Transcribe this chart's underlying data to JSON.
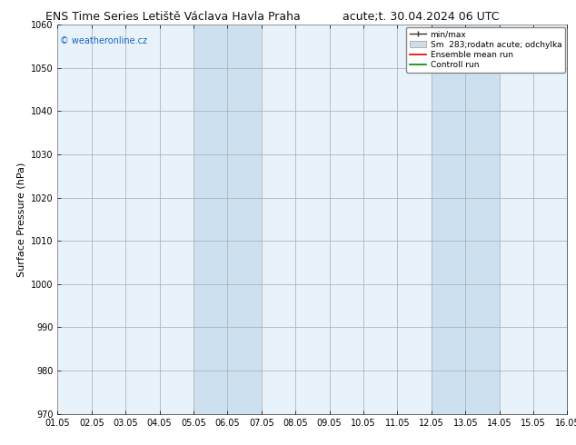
{
  "title_left": "ENS Time Series Letiště Václava Havla Praha",
  "title_right": "acute;t. 30.04.2024 06 UTC",
  "ylabel": "Surface Pressure (hPa)",
  "ylim": [
    970,
    1060
  ],
  "yticks": [
    970,
    980,
    990,
    1000,
    1010,
    1020,
    1030,
    1040,
    1050,
    1060
  ],
  "xtick_labels": [
    "01.05",
    "02.05",
    "03.05",
    "04.05",
    "05.05",
    "06.05",
    "07.05",
    "08.05",
    "09.05",
    "10.05",
    "11.05",
    "12.05",
    "13.05",
    "14.05",
    "15.05",
    "16.05"
  ],
  "shaded_bands": [
    {
      "xstart": 4.0,
      "xend": 6.0
    },
    {
      "xstart": 11.0,
      "xend": 13.0
    }
  ],
  "watermark": "© weatheronline.cz",
  "watermark_color": "#1565c0",
  "bg_color": "#ffffff",
  "plot_bg_color": "#e8f2fb",
  "band_color": "#cce0f0",
  "grid_color": "#aaaaaa",
  "title_fontsize": 9,
  "axis_fontsize": 8,
  "tick_fontsize": 7
}
